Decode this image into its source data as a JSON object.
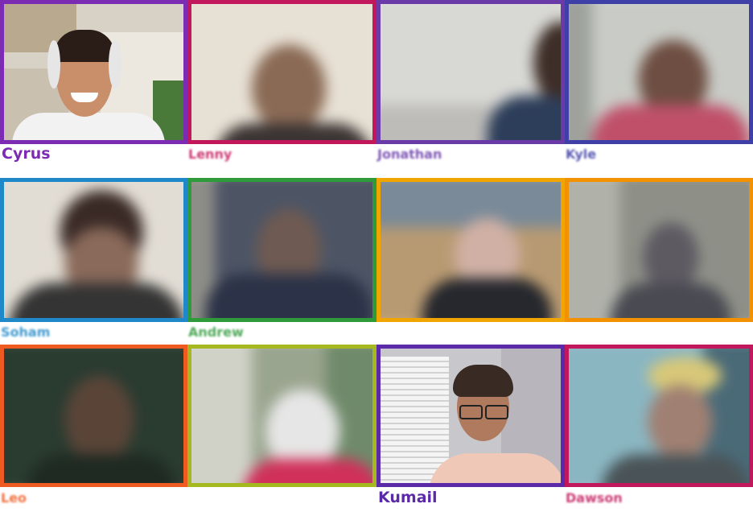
{
  "meeting": {
    "participants": [
      {
        "name": "Cyrus",
        "color": "#7b2cb3",
        "video": "clear"
      },
      {
        "name": "Lenny",
        "color": "#c2185b",
        "video": "blurred"
      },
      {
        "name": "Jonathan",
        "color": "#6a3aa8",
        "video": "blurred"
      },
      {
        "name": "Kyle",
        "color": "#3f3fa8",
        "video": "blurred"
      },
      {
        "name": "Soham",
        "color": "#1e88c8",
        "video": "blurred"
      },
      {
        "name": "Andrew",
        "color": "#2e9a3a",
        "video": "blurred"
      },
      {
        "name": "",
        "color": "#f0a500",
        "video": "blurred"
      },
      {
        "name": "",
        "color": "#f39200",
        "video": "blurred"
      },
      {
        "name": "Leo",
        "color": "#ee5a1f",
        "video": "blurred"
      },
      {
        "name": "",
        "color": "#a6b820",
        "video": "blurred"
      },
      {
        "name": "Kumail",
        "color": "#5b2aa8",
        "video": "clear"
      },
      {
        "name": "Dawson",
        "color": "#c2185b",
        "video": "blurred"
      }
    ]
  }
}
